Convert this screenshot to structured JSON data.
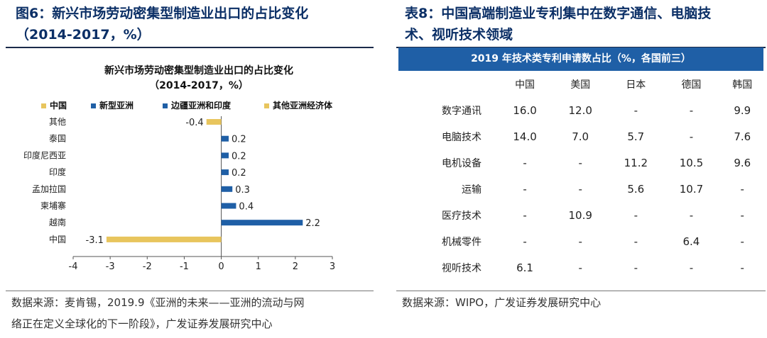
{
  "left": {
    "figure_title_line1": "图6：新兴市场劳动密集型制造业出口的占比变化",
    "figure_title_line2": "（2014-2017，%）",
    "source_line1": "数据来源：麦肯锡，2019.9《亚洲的未来——亚洲的流动与网",
    "source_line2": "络正在定义全球化的下一阶段》，广发证券发展研究中心"
  },
  "chart_data": {
    "type": "bar",
    "orientation": "horizontal",
    "title": "新兴市场劳动密集型制造业出口的占比变化",
    "subtitle": "（2014-2017，%）",
    "legend": [
      {
        "name": "中国",
        "color": "#e8c55d"
      },
      {
        "name": "新型亚洲",
        "color": "#1f5fa6"
      },
      {
        "name": "边疆亚洲和印度",
        "color": "#1f5fa6"
      },
      {
        "name": "其他亚洲经济体",
        "color": "#e8c55d"
      }
    ],
    "legend_position": "top",
    "categories": [
      "其他",
      "泰国",
      "印度尼西亚",
      "印度",
      "孟加拉国",
      "柬埔寨",
      "越南",
      "中国"
    ],
    "values": [
      -0.4,
      0.2,
      0.2,
      0.2,
      0.3,
      0.4,
      2.2,
      -3.1
    ],
    "value_labels": [
      "-0.4",
      "0.2",
      "0.2",
      "0.2",
      "0.3",
      "0.4",
      "2.2",
      "-3.1"
    ],
    "bar_colors": [
      "#e8c55d",
      "#1f5fa6",
      "#1f5fa6",
      "#1f5fa6",
      "#1f5fa6",
      "#1f5fa6",
      "#1f5fa6",
      "#e8c55d"
    ],
    "xlim": [
      -4,
      3
    ],
    "xticks": [
      "-4",
      "-3",
      "-2",
      "-1",
      "0",
      "1",
      "2",
      "3"
    ],
    "grid": false
  },
  "right": {
    "table_title_line1": "表8：中国高端制造业专利集中在数字通信、电脑技",
    "table_title_line2": "术、视听技术领域",
    "header": "2019 年技术类专利申请数占比（%，各国前三）",
    "columns": [
      "中国",
      "美国",
      "日本",
      "德国",
      "韩国"
    ],
    "rows": [
      {
        "label": "数字通讯",
        "cells": [
          "16.0",
          "12.0",
          "-",
          "-",
          "9.9"
        ]
      },
      {
        "label": "电脑技术",
        "cells": [
          "14.0",
          "7.0",
          "5.7",
          "-",
          "7.6"
        ]
      },
      {
        "label": "电机设备",
        "cells": [
          "-",
          "-",
          "11.2",
          "10.5",
          "9.6"
        ]
      },
      {
        "label": "运输",
        "cells": [
          "-",
          "-",
          "5.6",
          "10.7",
          "-"
        ]
      },
      {
        "label": "医疗技术",
        "cells": [
          "-",
          "10.9",
          "-",
          "-",
          "-"
        ]
      },
      {
        "label": "机械零件",
        "cells": [
          "-",
          "-",
          "-",
          "6.4",
          "-"
        ]
      },
      {
        "label": "视听技术",
        "cells": [
          "6.1",
          "-",
          "-",
          "-",
          "-"
        ]
      }
    ],
    "source": "数据来源：WIPO，广发证券发展研究中心"
  }
}
